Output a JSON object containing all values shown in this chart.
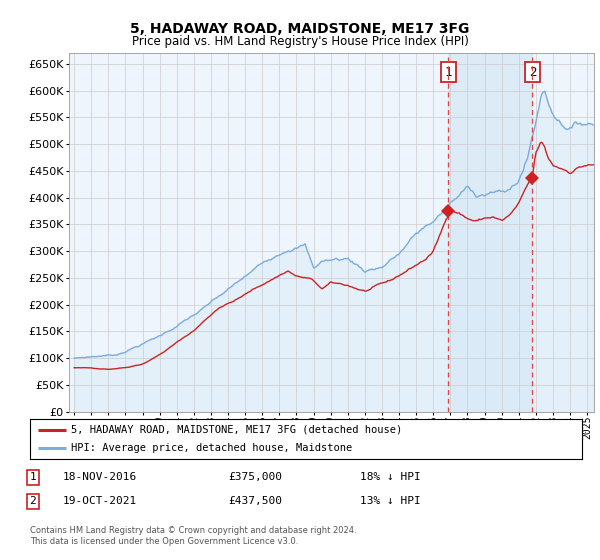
{
  "title": "5, HADAWAY ROAD, MAIDSTONE, ME17 3FG",
  "subtitle": "Price paid vs. HM Land Registry's House Price Index (HPI)",
  "ylim": [
    0,
    670000
  ],
  "ytick_step": 50000,
  "xlim_start": 1994.7,
  "xlim_end": 2025.4,
  "hpi_color": "#7aaddc",
  "hpi_fill_color": "#daeaf7",
  "price_color": "#cc2222",
  "vline_color": "#dd4444",
  "span_color": "#daeaf7",
  "transaction1_date": 2016.88,
  "transaction1_price": 375000,
  "transaction2_date": 2021.8,
  "transaction2_price": 437500,
  "legend_label1": "5, HADAWAY ROAD, MAIDSTONE, ME17 3FG (detached house)",
  "legend_label2": "HPI: Average price, detached house, Maidstone",
  "footer": "Contains HM Land Registry data © Crown copyright and database right 2024.\nThis data is licensed under the Open Government Licence v3.0.",
  "background_color": "#ffffff",
  "grid_color": "#cccccc",
  "chart_bg": "#eef5fc"
}
